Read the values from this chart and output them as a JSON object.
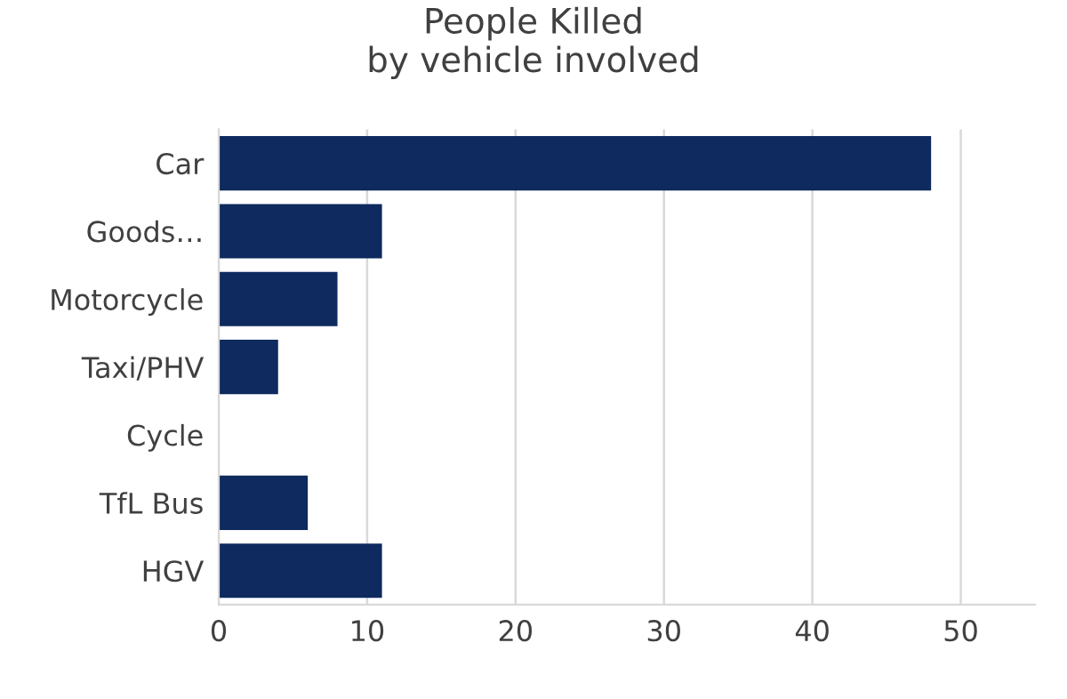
{
  "chart_data": {
    "type": "bar",
    "orientation": "horizontal",
    "title": "People Killed\nby vehicle involved",
    "categories": [
      "Car",
      "Goods…",
      "Motorcycle",
      "Taxi/PHV",
      "Cycle",
      "TfL Bus",
      "HGV"
    ],
    "values": [
      48,
      11,
      8,
      4,
      0,
      6,
      11
    ],
    "color": "#0e2a5e",
    "xlim": [
      0,
      55
    ],
    "xticks": [
      0,
      10,
      20,
      30,
      40,
      50
    ],
    "grid": "x",
    "legend": false
  }
}
